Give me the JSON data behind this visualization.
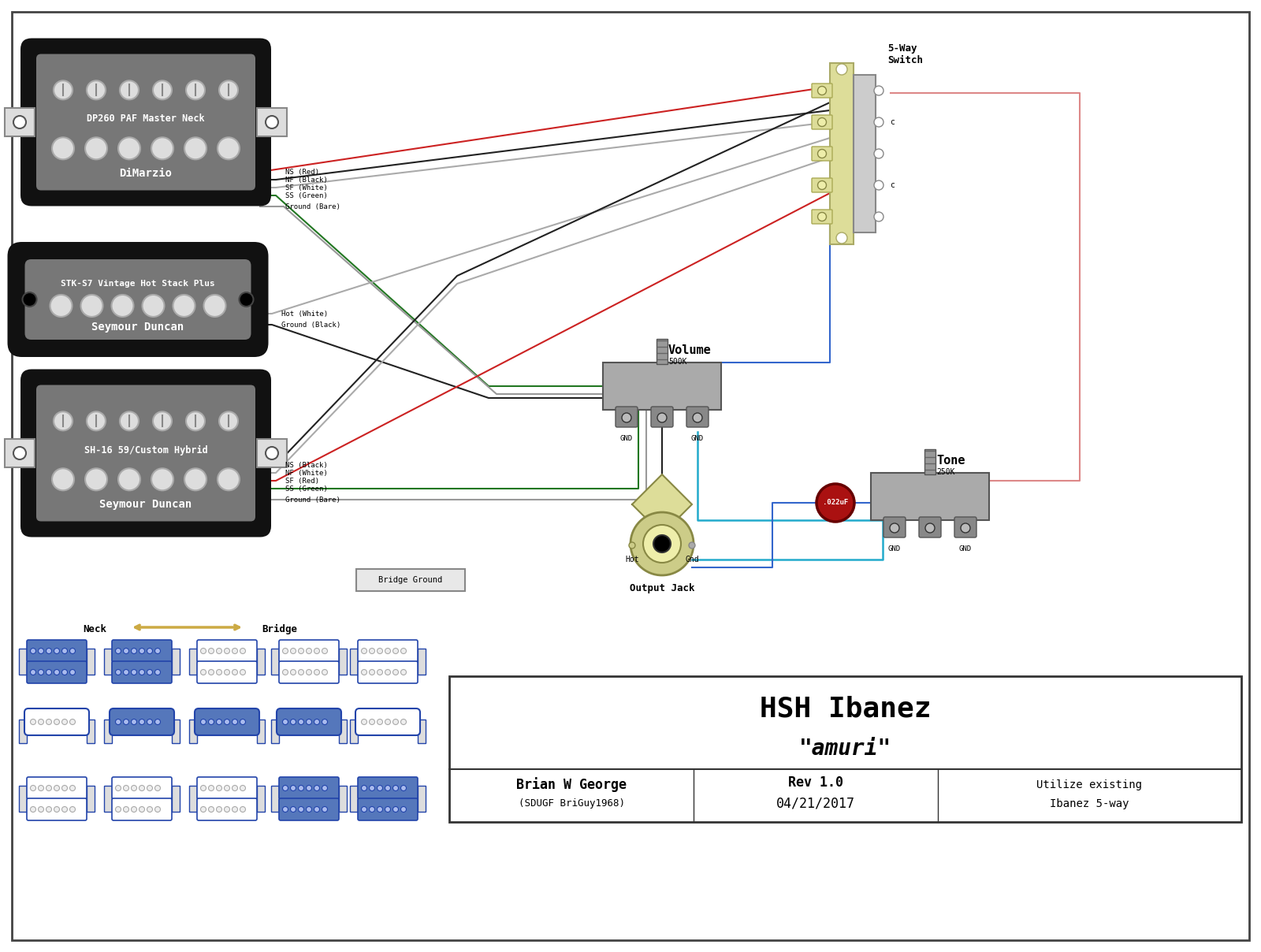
{
  "title": "HSH Ibanez",
  "subtitle": "\"amuri\"",
  "author": "Brian W George",
  "author_sub": "(SDUGF BriGuy1968)",
  "rev": "Rev 1.0",
  "date": "04/21/2017",
  "note1": "Utilize existing",
  "note2": "Ibanez 5-way",
  "bg_color": "#ffffff",
  "border_color": "#444444",
  "pickup_neck_name": "DP260 PAF Master Neck",
  "pickup_neck_brand": "DiMarzio",
  "pickup_mid_name": "STK-S7 Vintage Hot Stack Plus",
  "pickup_mid_brand": "Seymour Duncan",
  "pickup_bridge_name": "SH-16 59/Custom Hybrid",
  "pickup_bridge_brand": "Seymour Duncan",
  "wire_red": "#cc2222",
  "wire_black": "#222222",
  "wire_white": "#aaaaaa",
  "wire_green": "#227722",
  "wire_bare": "#999999",
  "wire_blue": "#3366cc",
  "wire_cyan": "#22aacc",
  "wire_pink": "#dd8888",
  "pickup_gray": "#777777",
  "pickup_dark": "#333333",
  "pickup_inner": "#555555",
  "pole_light": "#dddddd",
  "pole_edge": "#aaaaaa"
}
